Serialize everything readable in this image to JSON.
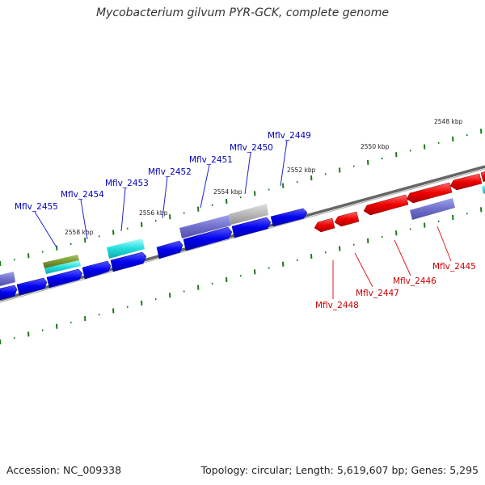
{
  "title": "Mycobacterium gilvum PYR-GCK, complete genome",
  "footer": {
    "accession": "Accession: NC_009338",
    "summary": "Topology: circular; Length: 5,619,607 bp; Genes: 5,295"
  },
  "scale_labels": [
    "2548 kbp",
    "2550 kbp",
    "2552 kbp",
    "2554 kbp",
    "2556 kbp",
    "2558 kbp"
  ],
  "forward_genes": [
    "Mflv_2449",
    "Mflv_2450",
    "Mflv_2451",
    "Mflv_2452",
    "Mflv_2453",
    "Mflv_2454",
    "Mflv_2455"
  ],
  "reverse_genes": [
    "Mflv_2445",
    "Mflv_2446",
    "Mflv_2447",
    "Mflv_2448"
  ],
  "colors": {
    "forward": "#0000ee",
    "reverse": "#ee0000",
    "lavender": "#7070cc",
    "cyan": "#22dddd",
    "olive": "#7a9a30",
    "grey": "#b8b8b8",
    "tick": "#1a7a1a",
    "backbone": "#777777"
  }
}
